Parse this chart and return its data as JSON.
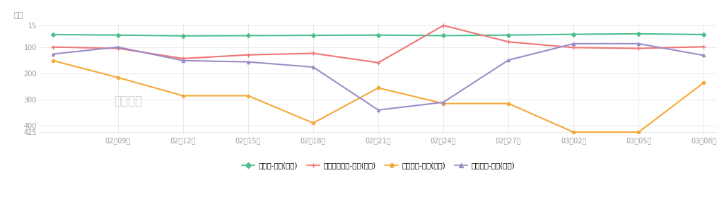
{
  "title": "排名",
  "x_ticks": [
    "02月09日",
    "02月12日",
    "02月15日",
    "02月18日",
    "02月21日",
    "02月24日",
    "02月27日",
    "03月02日",
    "03月05日",
    "03月08日"
  ],
  "yticks": [
    15,
    100,
    200,
    300,
    400,
    425
  ],
  "watermark": "七麦数据",
  "background_color": "#ffffff",
  "grid_color": "#e5e5e5",
  "green": {
    "name": "凌云诺-游戏(畅销)",
    "color": "#4dbe8d",
    "y": [
      50,
      52,
      55,
      54,
      53,
      52,
      54,
      52,
      49,
      47,
      50
    ]
  },
  "red": {
    "name": "花亦山心之月-游戏(畅销)",
    "color": "#f07575",
    "y": [
      98,
      103,
      142,
      128,
      122,
      158,
      15,
      78,
      100,
      103,
      97
    ]
  },
  "orange": {
    "name": "璀璨星途-游戏(畅销)",
    "color": "#f5a83a",
    "y": [
      150,
      215,
      285,
      285,
      390,
      255,
      315,
      315,
      425,
      425,
      235
    ]
  },
  "purple": {
    "name": "绝对演绎-游戏(畅销)",
    "color": "#9b8dc8",
    "y": [
      125,
      98,
      150,
      155,
      175,
      340,
      310,
      148,
      85,
      85,
      130
    ]
  },
  "legend_markers": [
    "D",
    "+",
    "o",
    "^"
  ],
  "legend_colors": [
    "#4dbe8d",
    "#f07575",
    "#f5a83a",
    "#9b8dc8"
  ],
  "legend_labels": [
    "凌云诺-游戏(畅销)",
    "花亦山心之月-游戏(畅销)",
    "璀璨星途-游戏(畅销)",
    "绝对演绎-游戏(畅销)"
  ]
}
